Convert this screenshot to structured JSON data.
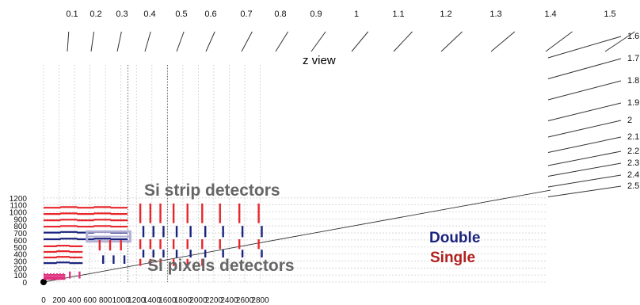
{
  "title": "z view",
  "x_ticks": [
    "0",
    "200",
    "400",
    "600",
    "800",
    "1000",
    "1200",
    "1400",
    "1600",
    "1800",
    "2000",
    "2200",
    "2400",
    "2600",
    "2800"
  ],
  "y_ticks": [
    "0",
    "100",
    "200",
    "300",
    "400",
    "500",
    "600",
    "700",
    "800",
    "900",
    "1000",
    "1100",
    "1200"
  ],
  "eta_labels": [
    "0.1",
    "0.2",
    "0.3",
    "0.4",
    "0.5",
    "0.6",
    "0.7",
    "0.8",
    "0.9",
    "1",
    "1.1",
    "1.2",
    "1.3",
    "1.4",
    "1.5",
    "1.6",
    "1.7",
    "1.8",
    "1.9",
    "2",
    "2.1",
    "2.2",
    "2.3",
    "2.4",
    "2.5"
  ],
  "regions": {
    "strip": "Si strip detectors",
    "pixel": "Si pixels detectors"
  },
  "legend": {
    "double": "Double",
    "single": "Single"
  },
  "colors": {
    "double": "#1a237e",
    "single": "#e8262b",
    "pixel": "#e0337f",
    "strip_box": "#b3b0d6",
    "legend_single": "#b0201e"
  },
  "layers": {
    "barrel": [
      {
        "r": 1060,
        "z": [
          0,
          1080
        ],
        "kind": "single"
      },
      {
        "r": 970,
        "z": [
          0,
          1080
        ],
        "kind": "single"
      },
      {
        "r": 880,
        "z": [
          0,
          1080
        ],
        "kind": "single"
      },
      {
        "r": 790,
        "z": [
          0,
          1080
        ],
        "kind": "single"
      },
      {
        "r": 705,
        "z": [
          0,
          1080
        ],
        "kind": "double"
      },
      {
        "r": 610,
        "z": [
          0,
          1080
        ],
        "kind": "double"
      },
      {
        "r": 510,
        "z": [
          0,
          500
        ],
        "kind": "single"
      },
      {
        "r": 430,
        "z": [
          0,
          500
        ],
        "kind": "single"
      },
      {
        "r": 350,
        "z": [
          0,
          500
        ],
        "kind": "single"
      },
      {
        "r": 270,
        "z": [
          0,
          500
        ],
        "kind": "double"
      }
    ],
    "pixel_barrel": [
      {
        "r": 45,
        "z": [
          0,
          280
        ]
      },
      {
        "r": 70,
        "z": [
          0,
          280
        ]
      },
      {
        "r": 100,
        "z": [
          0,
          280
        ]
      }
    ],
    "pixel_disks": [
      {
        "z": 340,
        "r": [
          50,
          150
        ]
      },
      {
        "z": 465,
        "r": [
          50,
          150
        ]
      }
    ],
    "tid_disks": [
      {
        "z": 725,
        "rings": [
          "single",
          "double"
        ]
      },
      {
        "z": 860,
        "rings": [
          "single",
          "double"
        ]
      },
      {
        "z": 1000,
        "rings": [
          "single",
          "double"
        ]
      }
    ],
    "tec_disks": [
      {
        "z": 1270,
        "rings": [
          "single",
          "double",
          "single",
          "double",
          "single"
        ]
      },
      {
        "z": 1400,
        "rings": [
          "single",
          "double",
          "single",
          "double",
          "single"
        ]
      },
      {
        "z": 1530,
        "rings": [
          "single",
          "double",
          "single",
          "double",
          "single"
        ]
      },
      {
        "z": 1700,
        "rings": [
          "single",
          "double",
          "single",
          "double",
          "single"
        ]
      },
      {
        "z": 1880,
        "rings": [
          "single",
          "double",
          "single",
          "double",
          "single"
        ]
      },
      {
        "z": 2070,
        "rings": [
          "single",
          "double",
          "single",
          "double",
          "single"
        ]
      },
      {
        "z": 2300,
        "rings": [
          "single",
          "double",
          "single",
          "double",
          "single"
        ]
      },
      {
        "z": 2550,
        "rings": [
          "single",
          "double",
          "single",
          "double",
          "single"
        ]
      },
      {
        "z": 2800,
        "rings": [
          "single",
          "double",
          "single",
          "double",
          "single"
        ]
      }
    ]
  }
}
